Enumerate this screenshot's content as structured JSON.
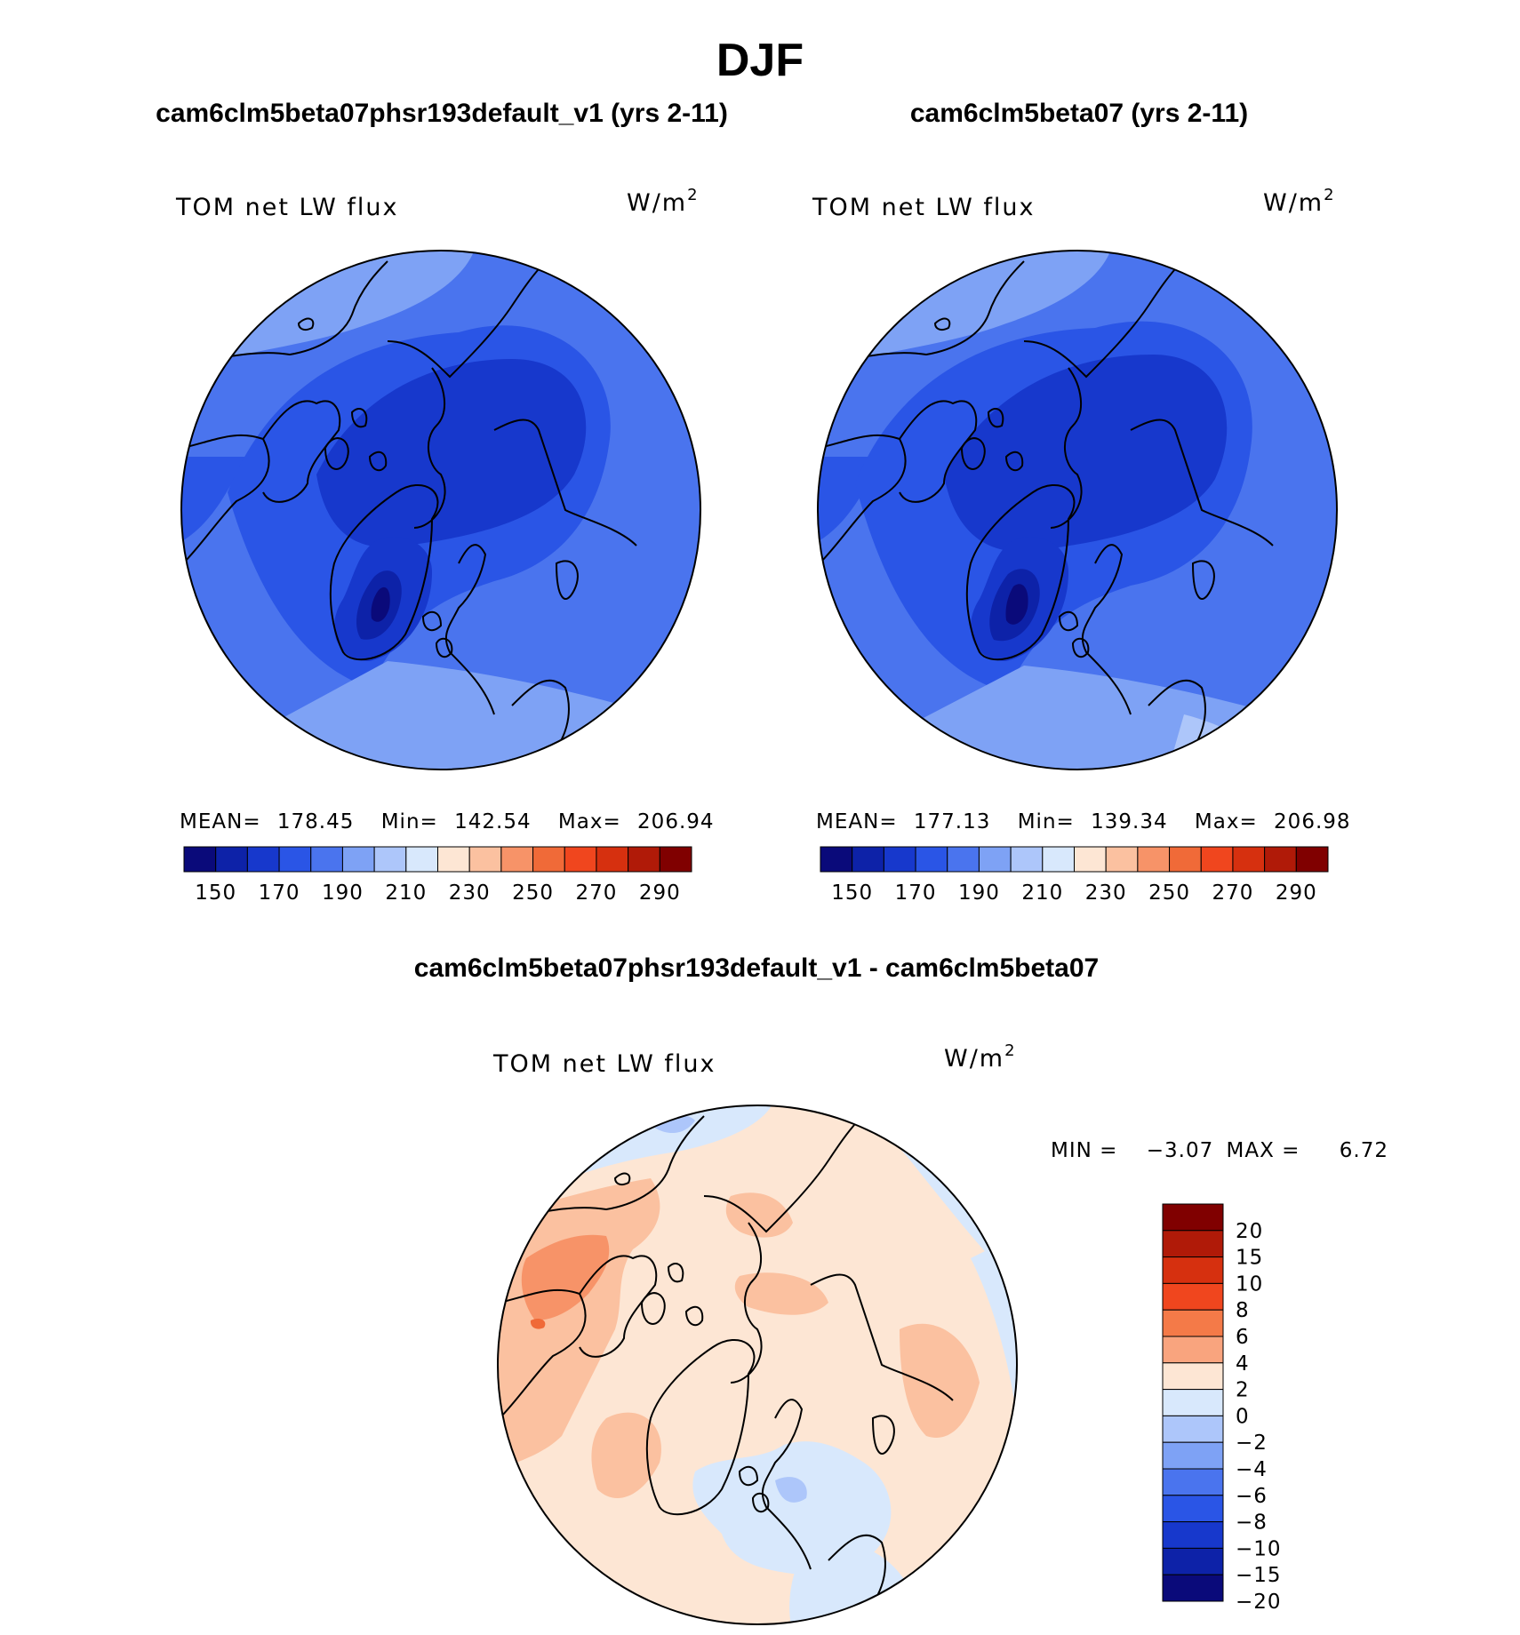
{
  "main_title": "DJF",
  "panels": [
    {
      "case_title": "cam6clm5beta07phsr193default_v1 (yrs 2-11)",
      "variable": "TOM net LW flux",
      "units": "W/m",
      "units_exp": "2",
      "stats": {
        "mean_label": "MEAN=",
        "mean": "178.45",
        "min_label": "Min=",
        "min": "142.54",
        "max_label": "Max=",
        "max": "206.94"
      }
    },
    {
      "case_title": "cam6clm5beta07 (yrs 2-11)",
      "variable": "TOM net LW flux",
      "units": "W/m",
      "units_exp": "2",
      "stats": {
        "mean_label": "MEAN=",
        "mean": "177.13",
        "min_label": "Min=",
        "min": "139.34",
        "max_label": "Max=",
        "max": "206.98"
      }
    }
  ],
  "abs_colorbar": {
    "colors": [
      "#0a0a7a",
      "#0d22a8",
      "#1738cc",
      "#2a55e6",
      "#4a74ee",
      "#7ea2f5",
      "#adc6fa",
      "#d8e8fc",
      "#fde6d4",
      "#fbc1a0",
      "#f79368",
      "#f06a38",
      "#f0461e",
      "#d6300f",
      "#b01a08",
      "#800000"
    ],
    "tick_labels": [
      "150",
      "170",
      "190",
      "210",
      "230",
      "250",
      "270",
      "290"
    ]
  },
  "diff_panel": {
    "title": "cam6clm5beta07phsr193default_v1 - cam6clm5beta07",
    "variable": "TOM net LW flux",
    "units": "W/m",
    "units_exp": "2",
    "min_label": "MIN =",
    "min": "−3.07",
    "max_label": "MAX =",
    "max": "6.72"
  },
  "diff_colorbar": {
    "colors": [
      "#800000",
      "#b01a08",
      "#d6300f",
      "#f0461e",
      "#f47a48",
      "#f9a47e",
      "#fde6d4",
      "#d8e8fc",
      "#adc6fa",
      "#7ea2f5",
      "#4a74ee",
      "#2a55e6",
      "#1738cc",
      "#0d22a8",
      "#0a0a7a"
    ],
    "tick_labels": [
      "20",
      "15",
      "10",
      "8",
      "6",
      "4",
      "2",
      "0",
      "−2",
      "−4",
      "−6",
      "−8",
      "−10",
      "−15",
      "−20"
    ]
  }
}
